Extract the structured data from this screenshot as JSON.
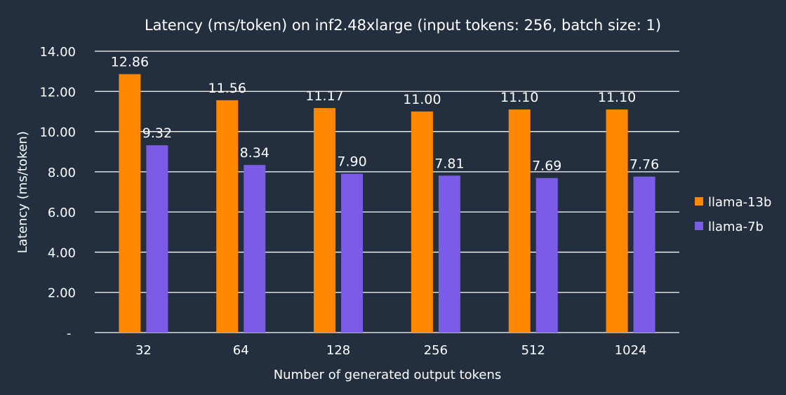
{
  "chart_data": {
    "type": "bar",
    "title": "Latency (ms/token) on inf2.48xlarge (input tokens: 256, batch size: 1)",
    "xlabel": "Number of generated output tokens",
    "ylabel": "Latency (ms/token)",
    "categories": [
      "32",
      "64",
      "128",
      "256",
      "512",
      "1024"
    ],
    "ylim": [
      0,
      14
    ],
    "yticks": [
      0,
      2,
      4,
      6,
      8,
      10,
      12,
      14
    ],
    "ytick_labels": [
      "-",
      "2.00",
      "4.00",
      "6.00",
      "8.00",
      "10.00",
      "12.00",
      "14.00"
    ],
    "grid": true,
    "legend_position": "right",
    "series": [
      {
        "name": "llama-13b",
        "color": "#ff8800",
        "values": [
          12.86,
          11.56,
          11.17,
          11.0,
          11.1,
          11.1
        ],
        "labels": [
          "12.86",
          "11.56",
          "11.17",
          "11.00",
          "11.10",
          "11.10"
        ]
      },
      {
        "name": "llama-7b",
        "color": "#7b5ce6",
        "values": [
          9.32,
          8.34,
          7.9,
          7.81,
          7.69,
          7.76
        ],
        "labels": [
          "9.32",
          "8.34",
          "7.90",
          "7.81",
          "7.69",
          "7.76"
        ]
      }
    ],
    "background": "#232f3e"
  }
}
